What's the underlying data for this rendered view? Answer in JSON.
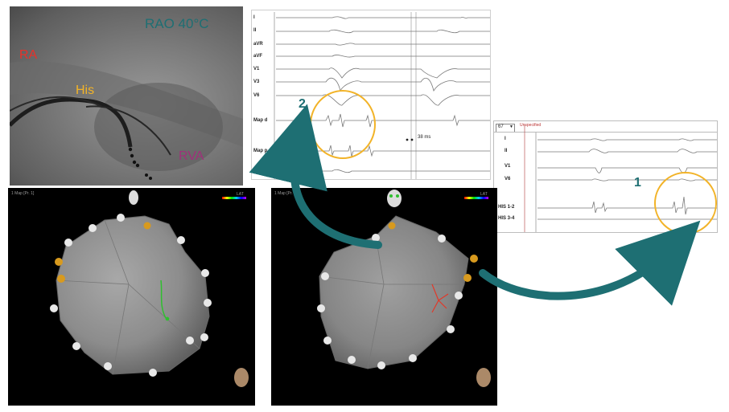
{
  "fluoro": {
    "view_label": "RAO 40°C",
    "labels": [
      {
        "text": "RA",
        "color": "#e8312a"
      },
      {
        "text": "His",
        "color": "#f2b328"
      },
      {
        "text": "RVA",
        "color": "#a0307a"
      }
    ]
  },
  "egm_top": {
    "leads": [
      "I",
      "II",
      "aVR",
      "aVF",
      "V1",
      "V3",
      "V6",
      "Map d",
      "Map p",
      "Map_Uni"
    ],
    "interval_label": "38 ms",
    "annotation": "2"
  },
  "egm_right": {
    "dropdown_value": "67",
    "status_text": "Unspecified",
    "leads": [
      "I",
      "II",
      "V1",
      "V6",
      "HIS 1-2",
      "HIS 3-4"
    ],
    "annotation": "1"
  },
  "map_left": {
    "header": "1 Map [Pr. 1]",
    "scale_label": "LAT"
  },
  "map_right": {
    "header": "1 Map [Pr. 1]",
    "scale_label": "LAT"
  },
  "colors": {
    "highlight_ring": "#f2b328",
    "arrow": "#1e6f73",
    "his_marker": "#d89a1e",
    "tag_marker": "#e8e8e8",
    "catheter_left": "#2fbf2f",
    "catheter_right": "#e0392a"
  }
}
